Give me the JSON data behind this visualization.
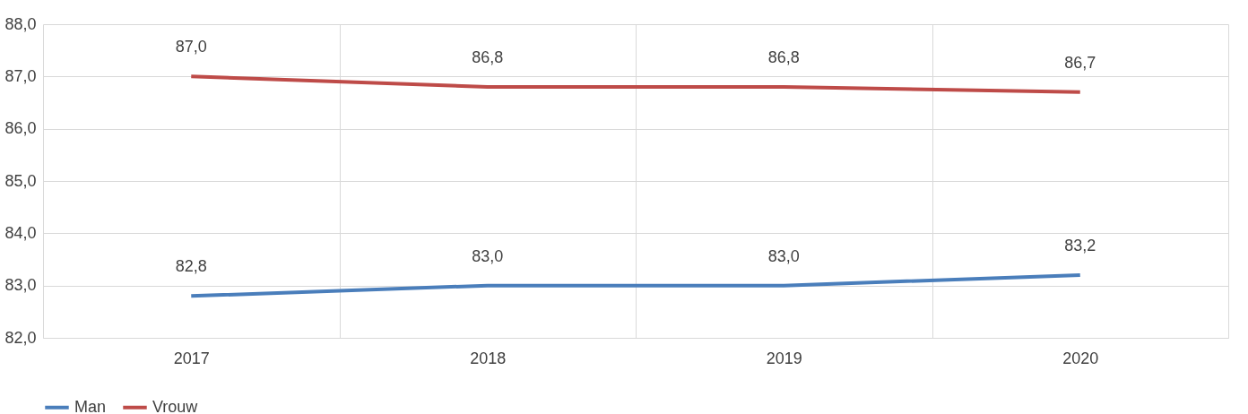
{
  "chart_data": {
    "type": "line",
    "categories": [
      "2017",
      "2018",
      "2019",
      "2020"
    ],
    "series": [
      {
        "name": "Man",
        "color": "#4a7ebb",
        "values": [
          82.8,
          83.0,
          83.0,
          83.2
        ],
        "value_labels": [
          "82,8",
          "83,0",
          "83,0",
          "83,2"
        ]
      },
      {
        "name": "Vrouw",
        "color": "#be4b48",
        "values": [
          87.0,
          86.8,
          86.8,
          86.7
        ],
        "value_labels": [
          "87,0",
          "86,8",
          "86,8",
          "86,7"
        ]
      }
    ],
    "ylim": [
      82,
      88
    ],
    "yticks": [
      {
        "value": 82,
        "label": "82,0"
      },
      {
        "value": 83,
        "label": "83,0"
      },
      {
        "value": 84,
        "label": "84,0"
      },
      {
        "value": 85,
        "label": "85,0"
      },
      {
        "value": 86,
        "label": "86,0"
      },
      {
        "value": 87,
        "label": "87,0"
      },
      {
        "value": 88,
        "label": "88,0"
      }
    ],
    "grid": true,
    "legend": "bottom",
    "marker": "none",
    "line_style": "solid"
  }
}
